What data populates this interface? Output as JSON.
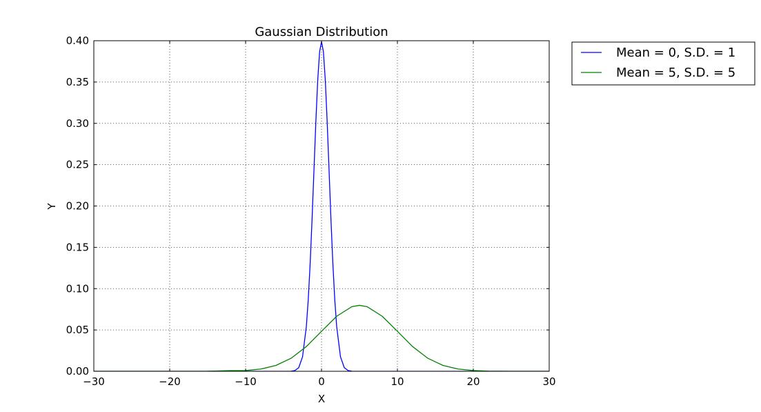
{
  "chart_data": {
    "type": "line",
    "title": "Gaussian Distribution",
    "xlabel": "X",
    "ylabel": "Y",
    "xlim": [
      -30,
      30
    ],
    "ylim": [
      0,
      0.4
    ],
    "x_ticks": [
      -30,
      -20,
      -10,
      0,
      10,
      20,
      30
    ],
    "x_tick_labels": [
      "−30",
      "−20",
      "−10",
      "0",
      "10",
      "20",
      "30"
    ],
    "y_ticks": [
      0,
      0.05,
      0.1,
      0.15,
      0.2,
      0.25,
      0.3,
      0.35,
      0.4
    ],
    "y_tick_labels": [
      "0.00",
      "0.05",
      "0.10",
      "0.15",
      "0.20",
      "0.25",
      "0.30",
      "0.35",
      "0.40"
    ],
    "grid": true,
    "legend_position": "outside-top-right",
    "series": [
      {
        "name": "Mean = 0, S.D. = 1",
        "color": "#0000ff",
        "x": [
          -30,
          -6,
          -5,
          -4,
          -3.5,
          -3,
          -2.5,
          -2,
          -1.75,
          -1.5,
          -1.25,
          -1,
          -0.75,
          -0.5,
          -0.25,
          0,
          0.25,
          0.5,
          0.75,
          1,
          1.25,
          1.5,
          1.75,
          2,
          2.5,
          3,
          3.5,
          4,
          5,
          6,
          30
        ],
        "y": [
          0,
          0,
          0,
          0.0001,
          0.0009,
          0.0044,
          0.0175,
          0.054,
          0.0863,
          0.1295,
          0.1826,
          0.242,
          0.3011,
          0.3521,
          0.3867,
          0.3989,
          0.3867,
          0.3521,
          0.3011,
          0.242,
          0.1826,
          0.1295,
          0.0863,
          0.054,
          0.0175,
          0.0044,
          0.0009,
          0.0001,
          0,
          0,
          0
        ]
      },
      {
        "name": "Mean = 5, S.D. = 5",
        "color": "#008000",
        "x": [
          -30,
          -25,
          -20,
          -15,
          -12,
          -10,
          -8,
          -6,
          -4,
          -2,
          0,
          2,
          4,
          5,
          6,
          8,
          10,
          12,
          14,
          16,
          18,
          20,
          22,
          25,
          30
        ],
        "y": [
          0,
          0,
          0,
          0.0001,
          0.0008,
          0.0009,
          0.0027,
          0.0071,
          0.0158,
          0.0299,
          0.0484,
          0.0666,
          0.0782,
          0.0798,
          0.0782,
          0.0666,
          0.0484,
          0.0299,
          0.0158,
          0.0071,
          0.0027,
          0.0009,
          0.0002,
          0,
          0
        ]
      }
    ]
  }
}
